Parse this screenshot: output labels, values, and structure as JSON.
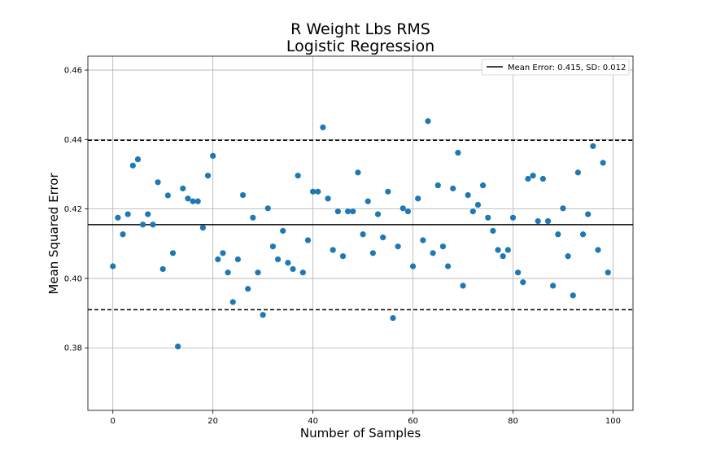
{
  "chart_data": {
    "type": "scatter",
    "title": "R Weight Lbs RMS",
    "subtitle": "Logistic Regression",
    "xlabel": "Number of Samples",
    "ylabel": "Mean Squared Error",
    "xlim": [
      -5,
      104
    ],
    "ylim": [
      0.362,
      0.464
    ],
    "xticks": [
      0,
      20,
      40,
      60,
      80,
      100
    ],
    "yticks": [
      0.38,
      0.4,
      0.42,
      0.44,
      0.46
    ],
    "xtick_labels": [
      "0",
      "20",
      "40",
      "60",
      "80",
      "100"
    ],
    "ytick_labels": [
      "0.38",
      "0.40",
      "0.42",
      "0.44",
      "0.46"
    ],
    "grid": true,
    "legend": {
      "placement": "top-right",
      "label": "Mean Error: 0.415, SD: 0.012"
    },
    "mean_line": 0.4155,
    "sd_lines": [
      0.391,
      0.4398
    ],
    "point_color": "#1f77b4",
    "x": [
      0,
      1,
      2,
      3,
      4,
      5,
      6,
      7,
      8,
      9,
      10,
      11,
      12,
      13,
      14,
      15,
      16,
      17,
      18,
      19,
      20,
      21,
      22,
      23,
      24,
      25,
      26,
      27,
      28,
      29,
      30,
      31,
      32,
      33,
      34,
      35,
      36,
      37,
      38,
      39,
      40,
      41,
      42,
      43,
      44,
      45,
      46,
      47,
      48,
      49,
      50,
      51,
      52,
      53,
      54,
      55,
      56,
      57,
      58,
      59,
      60,
      61,
      62,
      63,
      64,
      65,
      66,
      67,
      68,
      69,
      70,
      71,
      72,
      73,
      74,
      75,
      76,
      77,
      78,
      79,
      80,
      81,
      82,
      83,
      84,
      85,
      86,
      87,
      88,
      89,
      90,
      91,
      92,
      93,
      94,
      95,
      96,
      97,
      98,
      99
    ],
    "y": [
      0.4035,
      0.4175,
      0.4127,
      0.4185,
      0.4325,
      0.4343,
      0.4155,
      0.4185,
      0.4155,
      0.4277,
      0.4027,
      0.4239,
      0.4073,
      0.3804,
      0.4259,
      0.423,
      0.4222,
      0.4222,
      0.4146,
      0.4296,
      0.4353,
      0.4055,
      0.4073,
      0.4017,
      0.3932,
      0.4055,
      0.424,
      0.397,
      0.4175,
      0.4017,
      0.3895,
      0.4202,
      0.4092,
      0.4055,
      0.4137,
      0.4045,
      0.4027,
      0.4296,
      0.4017,
      0.411,
      0.425,
      0.425,
      0.4435,
      0.423,
      0.4082,
      0.4193,
      0.4064,
      0.4193,
      0.4193,
      0.4305,
      0.4127,
      0.4222,
      0.4073,
      0.4185,
      0.4118,
      0.425,
      0.3886,
      0.4092,
      0.4202,
      0.4193,
      0.4035,
      0.423,
      0.411,
      0.4453,
      0.4073,
      0.4268,
      0.4092,
      0.4035,
      0.4259,
      0.4362,
      0.3979,
      0.424,
      0.4193,
      0.4212,
      0.4268,
      0.4175,
      0.4137,
      0.4082,
      0.4064,
      0.4082,
      0.4175,
      0.4017,
      0.3989,
      0.4287,
      0.4296,
      0.4165,
      0.4287,
      0.4165,
      0.3979,
      0.4127,
      0.4202,
      0.4064,
      0.3951,
      0.4305,
      0.4127,
      0.4185,
      0.4381,
      0.4082,
      0.4333,
      0.4017
    ]
  }
}
